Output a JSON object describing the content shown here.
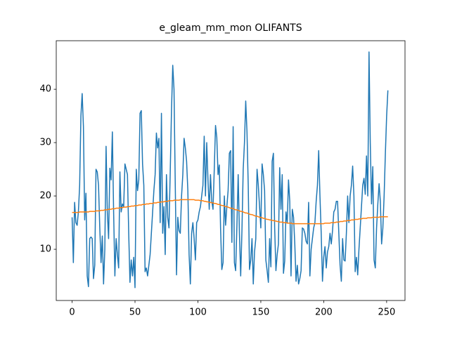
{
  "chart_data": {
    "type": "line",
    "title": "e_gleam_mm_mon OLIFANTS",
    "x": [
      0,
      1,
      2,
      3,
      4,
      5,
      6,
      7,
      8,
      9,
      10,
      11,
      12,
      13,
      14,
      15,
      16,
      17,
      18,
      19,
      20,
      21,
      22,
      23,
      24,
      25,
      26,
      27,
      28,
      29,
      30,
      31,
      32,
      33,
      34,
      35,
      36,
      37,
      38,
      39,
      40,
      41,
      42,
      43,
      44,
      45,
      46,
      47,
      48,
      49,
      50,
      51,
      52,
      53,
      54,
      55,
      56,
      57,
      58,
      59,
      60,
      61,
      62,
      63,
      64,
      65,
      66,
      67,
      68,
      69,
      70,
      71,
      72,
      73,
      74,
      75,
      76,
      77,
      78,
      79,
      80,
      81,
      82,
      83,
      84,
      85,
      86,
      87,
      88,
      89,
      90,
      91,
      92,
      93,
      94,
      95,
      96,
      97,
      98,
      99,
      100,
      101,
      102,
      103,
      104,
      105,
      106,
      107,
      108,
      109,
      110,
      111,
      112,
      113,
      114,
      115,
      116,
      117,
      118,
      119,
      120,
      121,
      122,
      123,
      124,
      125,
      126,
      127,
      128,
      129,
      130,
      131,
      132,
      133,
      134,
      135,
      136,
      137,
      138,
      139,
      140,
      141,
      142,
      143,
      144,
      145,
      146,
      147,
      148,
      149,
      150,
      151,
      152,
      153,
      154,
      155,
      156,
      157,
      158,
      159,
      160,
      161,
      162,
      163,
      164,
      165,
      166,
      167,
      168,
      169,
      170,
      171,
      172,
      173,
      174,
      175,
      176,
      177,
      178,
      179,
      180,
      181,
      182,
      183,
      184,
      185,
      186,
      187,
      188,
      189,
      190,
      191,
      192,
      193,
      194,
      195,
      196,
      197,
      198,
      199,
      200,
      201,
      202,
      203,
      204,
      205,
      206,
      207,
      208,
      209,
      210,
      211,
      212,
      213,
      214,
      215,
      216,
      217,
      218,
      219,
      220,
      221,
      222,
      223,
      224,
      225,
      226,
      227,
      228,
      229,
      230,
      231,
      232,
      233,
      234,
      235,
      236,
      237,
      238,
      239,
      240,
      241,
      242,
      243,
      244,
      245,
      246,
      247,
      248,
      249,
      250,
      251
    ],
    "series": [
      {
        "color": "#1f77b4",
        "values": [
          16,
          7.5,
          18.8,
          15,
          14.5,
          17,
          22,
          35,
          39.2,
          33,
          15.5,
          20.5,
          5,
          3,
          12,
          12.3,
          12,
          4.5,
          7,
          25,
          24.5,
          22,
          14,
          7.5,
          12.5,
          3.5,
          10,
          29.3,
          17,
          12,
          25.2,
          23,
          32,
          17,
          5,
          12,
          9,
          6.5,
          24.5,
          17,
          18.5,
          18,
          26,
          25,
          24,
          13,
          3.8,
          8,
          5,
          8.5,
          2.8,
          25,
          21,
          23,
          35.5,
          36,
          26,
          22,
          5.8,
          6.5,
          5,
          7,
          9,
          13,
          17,
          21,
          24,
          31.8,
          29,
          30.8,
          15,
          35.5,
          13,
          18,
          9,
          24,
          16,
          14,
          24.5,
          36,
          44.5,
          40,
          22,
          5.2,
          16,
          13.5,
          13,
          20,
          24,
          30.8,
          29,
          26.5,
          21,
          9,
          3.5,
          13,
          15,
          12,
          8,
          15,
          15.5,
          17,
          18,
          20,
          22,
          31.2,
          20,
          30,
          23,
          17.5,
          24,
          19,
          17.5,
          25,
          33.2,
          31,
          24,
          25.8,
          14,
          6.2,
          7.5,
          20,
          14.5,
          18,
          21,
          28,
          28.5,
          11.3,
          33,
          7.5,
          6,
          14.5,
          24,
          13,
          5,
          13.5,
          25,
          30,
          37.8,
          32,
          22,
          6.2,
          8,
          12,
          3.5,
          9.5,
          12,
          25,
          22,
          18,
          14,
          26,
          24,
          21,
          8,
          6,
          3.8,
          12,
          6.7,
          26.5,
          28,
          14,
          6,
          9,
          11,
          25.3,
          17.5,
          24,
          5.5,
          7.8,
          17,
          15,
          23,
          19,
          5,
          17.5,
          16,
          11,
          4,
          7,
          3.5,
          4.5,
          6,
          14,
          13.8,
          13,
          11.5,
          11,
          18.8,
          5,
          10,
          12,
          14,
          15,
          19,
          22,
          28.5,
          20,
          13,
          4,
          8.5,
          10.5,
          6.5,
          9.5,
          10.5,
          13,
          11,
          13.5,
          17,
          17.5,
          19,
          19,
          13,
          7,
          4,
          12,
          8,
          7.8,
          13,
          20,
          15,
          20,
          22,
          25.6,
          20,
          5.8,
          8.5,
          5.2,
          10,
          14,
          18,
          22,
          23.3,
          20.3,
          27.5,
          20,
          47,
          30,
          18.5,
          25.5,
          8,
          6.5,
          14,
          18.5,
          22.3,
          19,
          11,
          14,
          20,
          28,
          35,
          39.8
        ]
      },
      {
        "color": "#ff7f0e",
        "values": [
          16.9,
          16.9,
          16.9,
          16.9,
          16.9,
          16.9,
          17.0,
          17.0,
          17.0,
          17.0,
          17.0,
          17.0,
          17.0,
          17.0,
          17.1,
          17.1,
          17.1,
          17.1,
          17.1,
          17.2,
          17.2,
          17.2,
          17.2,
          17.3,
          17.3,
          17.3,
          17.4,
          17.4,
          17.4,
          17.5,
          17.5,
          17.5,
          17.6,
          17.6,
          17.6,
          17.7,
          17.7,
          17.7,
          17.8,
          17.8,
          17.8,
          17.9,
          17.9,
          17.9,
          18.0,
          18.0,
          18.0,
          18.1,
          18.1,
          18.1,
          18.2,
          18.2,
          18.2,
          18.3,
          18.3,
          18.3,
          18.4,
          18.4,
          18.4,
          18.5,
          18.5,
          18.5,
          18.6,
          18.6,
          18.6,
          18.7,
          18.7,
          18.7,
          18.8,
          18.8,
          18.8,
          18.9,
          18.9,
          18.9,
          19.0,
          19.0,
          19.0,
          19.1,
          19.1,
          19.1,
          19.1,
          19.2,
          19.2,
          19.2,
          19.2,
          19.2,
          19.3,
          19.3,
          19.3,
          19.3,
          19.3,
          19.3,
          19.3,
          19.3,
          19.3,
          19.3,
          19.3,
          19.3,
          19.2,
          19.2,
          19.2,
          19.2,
          19.1,
          19.1,
          19.1,
          19.0,
          19.0,
          18.9,
          18.9,
          18.8,
          18.8,
          18.7,
          18.7,
          18.6,
          18.6,
          18.5,
          18.4,
          18.4,
          18.3,
          18.2,
          18.2,
          18.1,
          18.0,
          18.0,
          17.9,
          17.8,
          17.7,
          17.7,
          17.6,
          17.5,
          17.4,
          17.4,
          17.3,
          17.2,
          17.1,
          17.1,
          17.0,
          16.9,
          16.8,
          16.8,
          16.7,
          16.6,
          16.5,
          16.5,
          16.4,
          16.3,
          16.2,
          16.2,
          16.1,
          16.0,
          16.0,
          15.9,
          15.8,
          15.8,
          15.7,
          15.6,
          15.6,
          15.5,
          15.5,
          15.4,
          15.4,
          15.3,
          15.3,
          15.2,
          15.2,
          15.1,
          15.1,
          15.1,
          15.0,
          15.0,
          15.0,
          14.9,
          14.9,
          14.9,
          14.9,
          14.8,
          14.8,
          14.8,
          14.8,
          14.8,
          14.8,
          14.8,
          14.8,
          14.8,
          14.8,
          14.8,
          14.8,
          14.8,
          14.8,
          14.8,
          14.8,
          14.8,
          14.8,
          14.8,
          14.8,
          14.8,
          14.8,
          14.8,
          14.8,
          14.8,
          14.8,
          14.9,
          14.9,
          14.9,
          14.9,
          14.9,
          15.0,
          15.0,
          15.0,
          15.0,
          15.1,
          15.1,
          15.1,
          15.2,
          15.2,
          15.2,
          15.3,
          15.3,
          15.3,
          15.4,
          15.4,
          15.4,
          15.5,
          15.5,
          15.5,
          15.6,
          15.6,
          15.6,
          15.7,
          15.7,
          15.7,
          15.8,
          15.8,
          15.8,
          15.8,
          15.9,
          15.9,
          15.9,
          15.9,
          16.0,
          16.0,
          16.0,
          16.0,
          16.0,
          16.0,
          16.1,
          16.1,
          16.1,
          16.1,
          16.1,
          16.1,
          16.1
        ]
      }
    ],
    "xlim": [
      -12.6,
      264.6
    ],
    "ylim": [
      0.4,
      49.1
    ],
    "xticks": [
      0,
      50,
      100,
      150,
      200,
      250
    ],
    "yticks": [
      10,
      20,
      30,
      40
    ]
  }
}
